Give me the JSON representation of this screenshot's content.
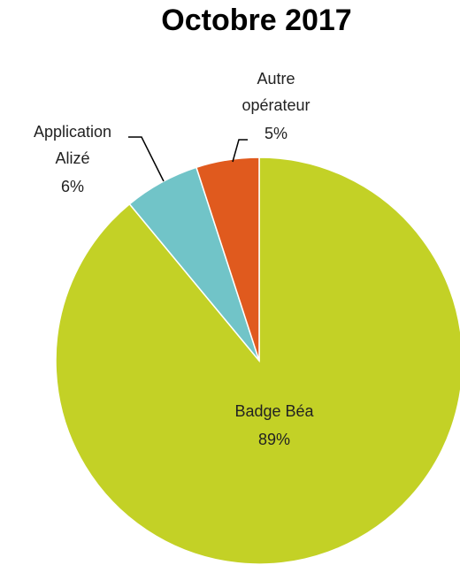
{
  "chart_data": {
    "type": "pie",
    "title": "Octobre 2017",
    "categories": [
      "Badge Béa",
      "Application Alizé",
      "Autre opérateur"
    ],
    "values": [
      89,
      6,
      5
    ],
    "value_labels": [
      "89%",
      "6%",
      "5%"
    ],
    "colors": [
      "#c3d126",
      "#71c4c8",
      "#e05a1e"
    ]
  }
}
